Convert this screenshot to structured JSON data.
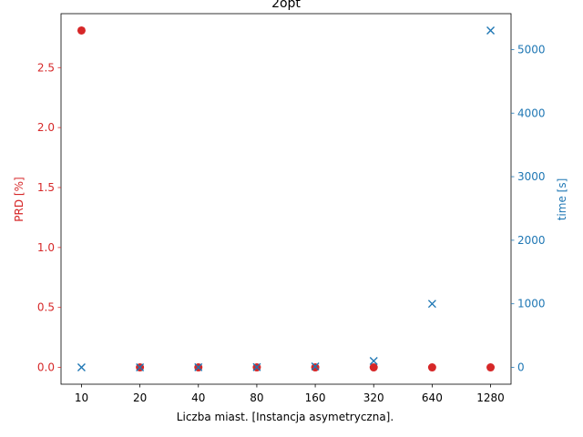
{
  "chart_data": {
    "type": "scatter",
    "title": "2opt",
    "xlabel": "Liczba miast. [Instancja asymetryczna].",
    "x_scale": "log2",
    "x": [
      10,
      20,
      40,
      80,
      160,
      320,
      640,
      1280
    ],
    "x_tick_labels": [
      "10",
      "20",
      "40",
      "80",
      "160",
      "320",
      "640",
      "1280"
    ],
    "grid": false,
    "series": [
      {
        "name": "PRD [%]",
        "axis": "left",
        "marker": "circle",
        "color": "#d62728",
        "values": [
          2.81,
          0.0,
          0.0,
          0.0,
          0.0,
          0.0,
          0.0,
          0.0
        ]
      },
      {
        "name": "time [s]",
        "axis": "right",
        "marker": "x",
        "color": "#1f77b4",
        "values": [
          0,
          0.5,
          1,
          4,
          15,
          100,
          1000,
          5300
        ]
      }
    ],
    "left_axis": {
      "label": "PRD [%]",
      "color": "#d62728",
      "ylim": [
        -0.14,
        2.95
      ],
      "ticks": [
        0.0,
        0.5,
        1.0,
        1.5,
        2.0,
        2.5
      ],
      "tick_labels": [
        "0.0",
        "0.5",
        "1.0",
        "1.5",
        "2.0",
        "2.5"
      ]
    },
    "right_axis": {
      "label": "time [s]",
      "color": "#1f77b4",
      "ylim": [
        -265,
        5565
      ],
      "ticks": [
        0,
        1000,
        2000,
        3000,
        4000,
        5000
      ],
      "tick_labels": [
        "0",
        "1000",
        "2000",
        "3000",
        "4000",
        "5000"
      ]
    }
  }
}
